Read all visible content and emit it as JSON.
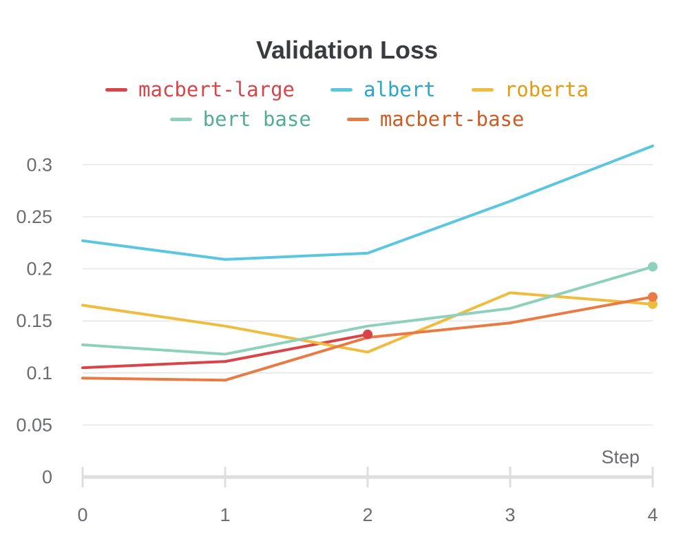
{
  "chart_data": {
    "type": "line",
    "title": "Validation Loss",
    "xlabel": "Step",
    "ylabel": "",
    "x": [
      0,
      1,
      2,
      3,
      4
    ],
    "xlim": [
      0,
      4
    ],
    "ylim": [
      0,
      0.3
    ],
    "yticks": [
      "0",
      "0.05",
      "0.1",
      "0.15",
      "0.2",
      "0.25",
      "0.3"
    ],
    "xticks": [
      "0",
      "1",
      "2",
      "3",
      "4"
    ],
    "grid": true,
    "legend_position": "top",
    "series": [
      {
        "name": "macbert-large",
        "color": "#d84448",
        "label_color": "#d84448",
        "x": [
          0,
          1,
          2
        ],
        "values": [
          0.105,
          0.111,
          0.137
        ]
      },
      {
        "name": "albert",
        "color": "#5bc6df",
        "label_color": "#2aa6c7",
        "x": [
          0,
          1,
          2,
          3,
          4
        ],
        "values": [
          0.227,
          0.209,
          0.215,
          0.265,
          0.318
        ]
      },
      {
        "name": "roberta",
        "color": "#f0bc3f",
        "label_color": "#e39d12",
        "x": [
          0,
          1,
          2,
          3,
          4
        ],
        "values": [
          0.165,
          0.145,
          0.12,
          0.177,
          0.166
        ]
      },
      {
        "name": "bert base",
        "color": "#8dd1bd",
        "label_color": "#53ad93",
        "x": [
          0,
          1,
          2,
          3,
          4
        ],
        "values": [
          0.127,
          0.118,
          0.145,
          0.162,
          0.202
        ]
      },
      {
        "name": "macbert-base",
        "color": "#ea7a43",
        "label_color": "#cf5b21",
        "x": [
          0,
          1,
          2,
          3,
          4
        ],
        "values": [
          0.095,
          0.093,
          0.134,
          0.148,
          0.173
        ]
      }
    ]
  }
}
